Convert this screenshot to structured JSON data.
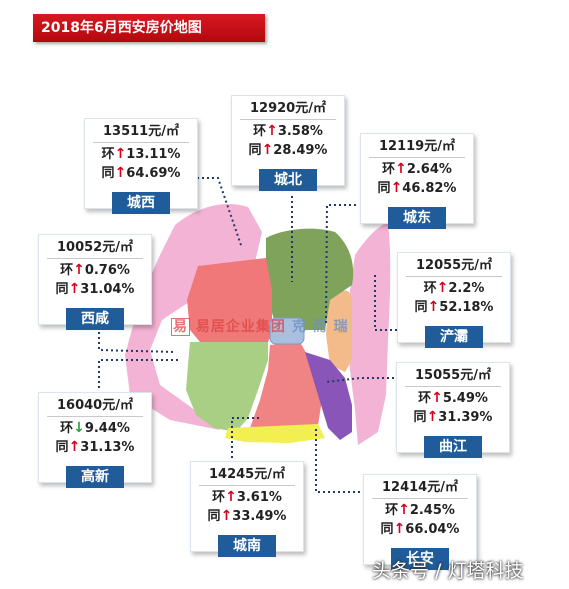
{
  "title": "2018年6月西安房价地图",
  "colors": {
    "arrow_up": "#d6001c",
    "arrow_down": "#2e9d3f",
    "badge_bg": "#1f5c99",
    "title_bg": "#c8101a"
  },
  "districts": [
    {
      "name": "城西",
      "price": "13511元/㎡",
      "mom_label": "环",
      "mom_dir": "up",
      "mom": "13.11%",
      "yoy_label": "同",
      "yoy_dir": "up",
      "yoy": "64.69%",
      "region_color": "#f07878"
    },
    {
      "name": "城北",
      "price": "12920元/㎡",
      "mom_label": "环",
      "mom_dir": "up",
      "mom": "3.58%",
      "yoy_label": "同",
      "yoy_dir": "up",
      "yoy": "28.49%",
      "region_color": "#7fa35a"
    },
    {
      "name": "城东",
      "price": "12119元/㎡",
      "mom_label": "环",
      "mom_dir": "up",
      "mom": "2.64%",
      "yoy_label": "同",
      "yoy_dir": "up",
      "yoy": "46.82%",
      "region_color": "#f4bb8a"
    },
    {
      "name": "西咸",
      "price": "10052元/㎡",
      "mom_label": "环",
      "mom_dir": "up",
      "mom": "0.76%",
      "yoy_label": "同",
      "yoy_dir": "up",
      "yoy": "31.04%",
      "region_color": "#f3b3d4"
    },
    {
      "name": "浐灞",
      "price": "12055元/㎡",
      "mom_label": "环",
      "mom_dir": "up",
      "mom": "2.2%",
      "yoy_label": "同",
      "yoy_dir": "up",
      "yoy": "52.18%",
      "region_color": "#f3b3d4"
    },
    {
      "name": "高新",
      "price": "16040元/㎡",
      "mom_label": "环",
      "mom_dir": "down",
      "mom": "9.44%",
      "yoy_label": "同",
      "yoy_dir": "up",
      "yoy": "31.13%",
      "region_color": "#a8cf84"
    },
    {
      "name": "曲江",
      "price": "15055元/㎡",
      "mom_label": "环",
      "mom_dir": "up",
      "mom": "5.49%",
      "yoy_label": "同",
      "yoy_dir": "up",
      "yoy": "31.39%",
      "region_color": "#8a55b8"
    },
    {
      "name": "城南",
      "price": "14245元/㎡",
      "mom_label": "环",
      "mom_dir": "up",
      "mom": "3.61%",
      "yoy_label": "同",
      "yoy_dir": "up",
      "yoy": "33.49%",
      "region_color": "#f08383"
    },
    {
      "name": "长安",
      "price": "12414元/㎡",
      "mom_label": "环",
      "mom_dir": "up",
      "mom": "2.45%",
      "yoy_label": "同",
      "yoy_dir": "up",
      "yoy": "66.04%",
      "region_color": "#f2ef50"
    }
  ],
  "watermark": {
    "seal": "易",
    "company": "易居企业集团",
    "brand": "克 而 瑞"
  },
  "source": "头条号 / 灯塔科技"
}
